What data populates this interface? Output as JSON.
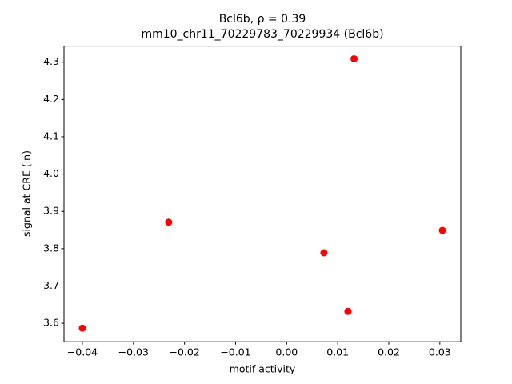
{
  "chart_data": {
    "type": "scatter",
    "title": "Bcl6b, ρ = 0.39",
    "subtitle": "mm10_chr11_70229783_70229934 (Bcl6b)",
    "x_label": "motif activity",
    "y_label": "signal at CRE (ln)",
    "color": "#ff0000",
    "x": [
      -0.04,
      -0.0231,
      0.0073,
      0.012,
      0.0132,
      0.0305
    ],
    "values": [
      3.587,
      3.871,
      3.789,
      3.632,
      4.309,
      3.849
    ],
    "xlim": [
      -0.0436,
      0.0341
    ],
    "ylim": [
      3.5506,
      4.343
    ],
    "xticks": [
      {
        "value": -0.04,
        "label": "−0.04"
      },
      {
        "value": -0.03,
        "label": "−0.03"
      },
      {
        "value": -0.02,
        "label": "−0.02"
      },
      {
        "value": -0.01,
        "label": "−0.01"
      },
      {
        "value": 0,
        "label": "0.00"
      },
      0.01,
      0.02,
      0.03
    ],
    "yticks": [
      3.6,
      3.7,
      3.8,
      3.9,
      {
        "value": 4,
        "label": "4.0"
      },
      4.1,
      4.2,
      4.3
    ],
    "grid": false
  }
}
